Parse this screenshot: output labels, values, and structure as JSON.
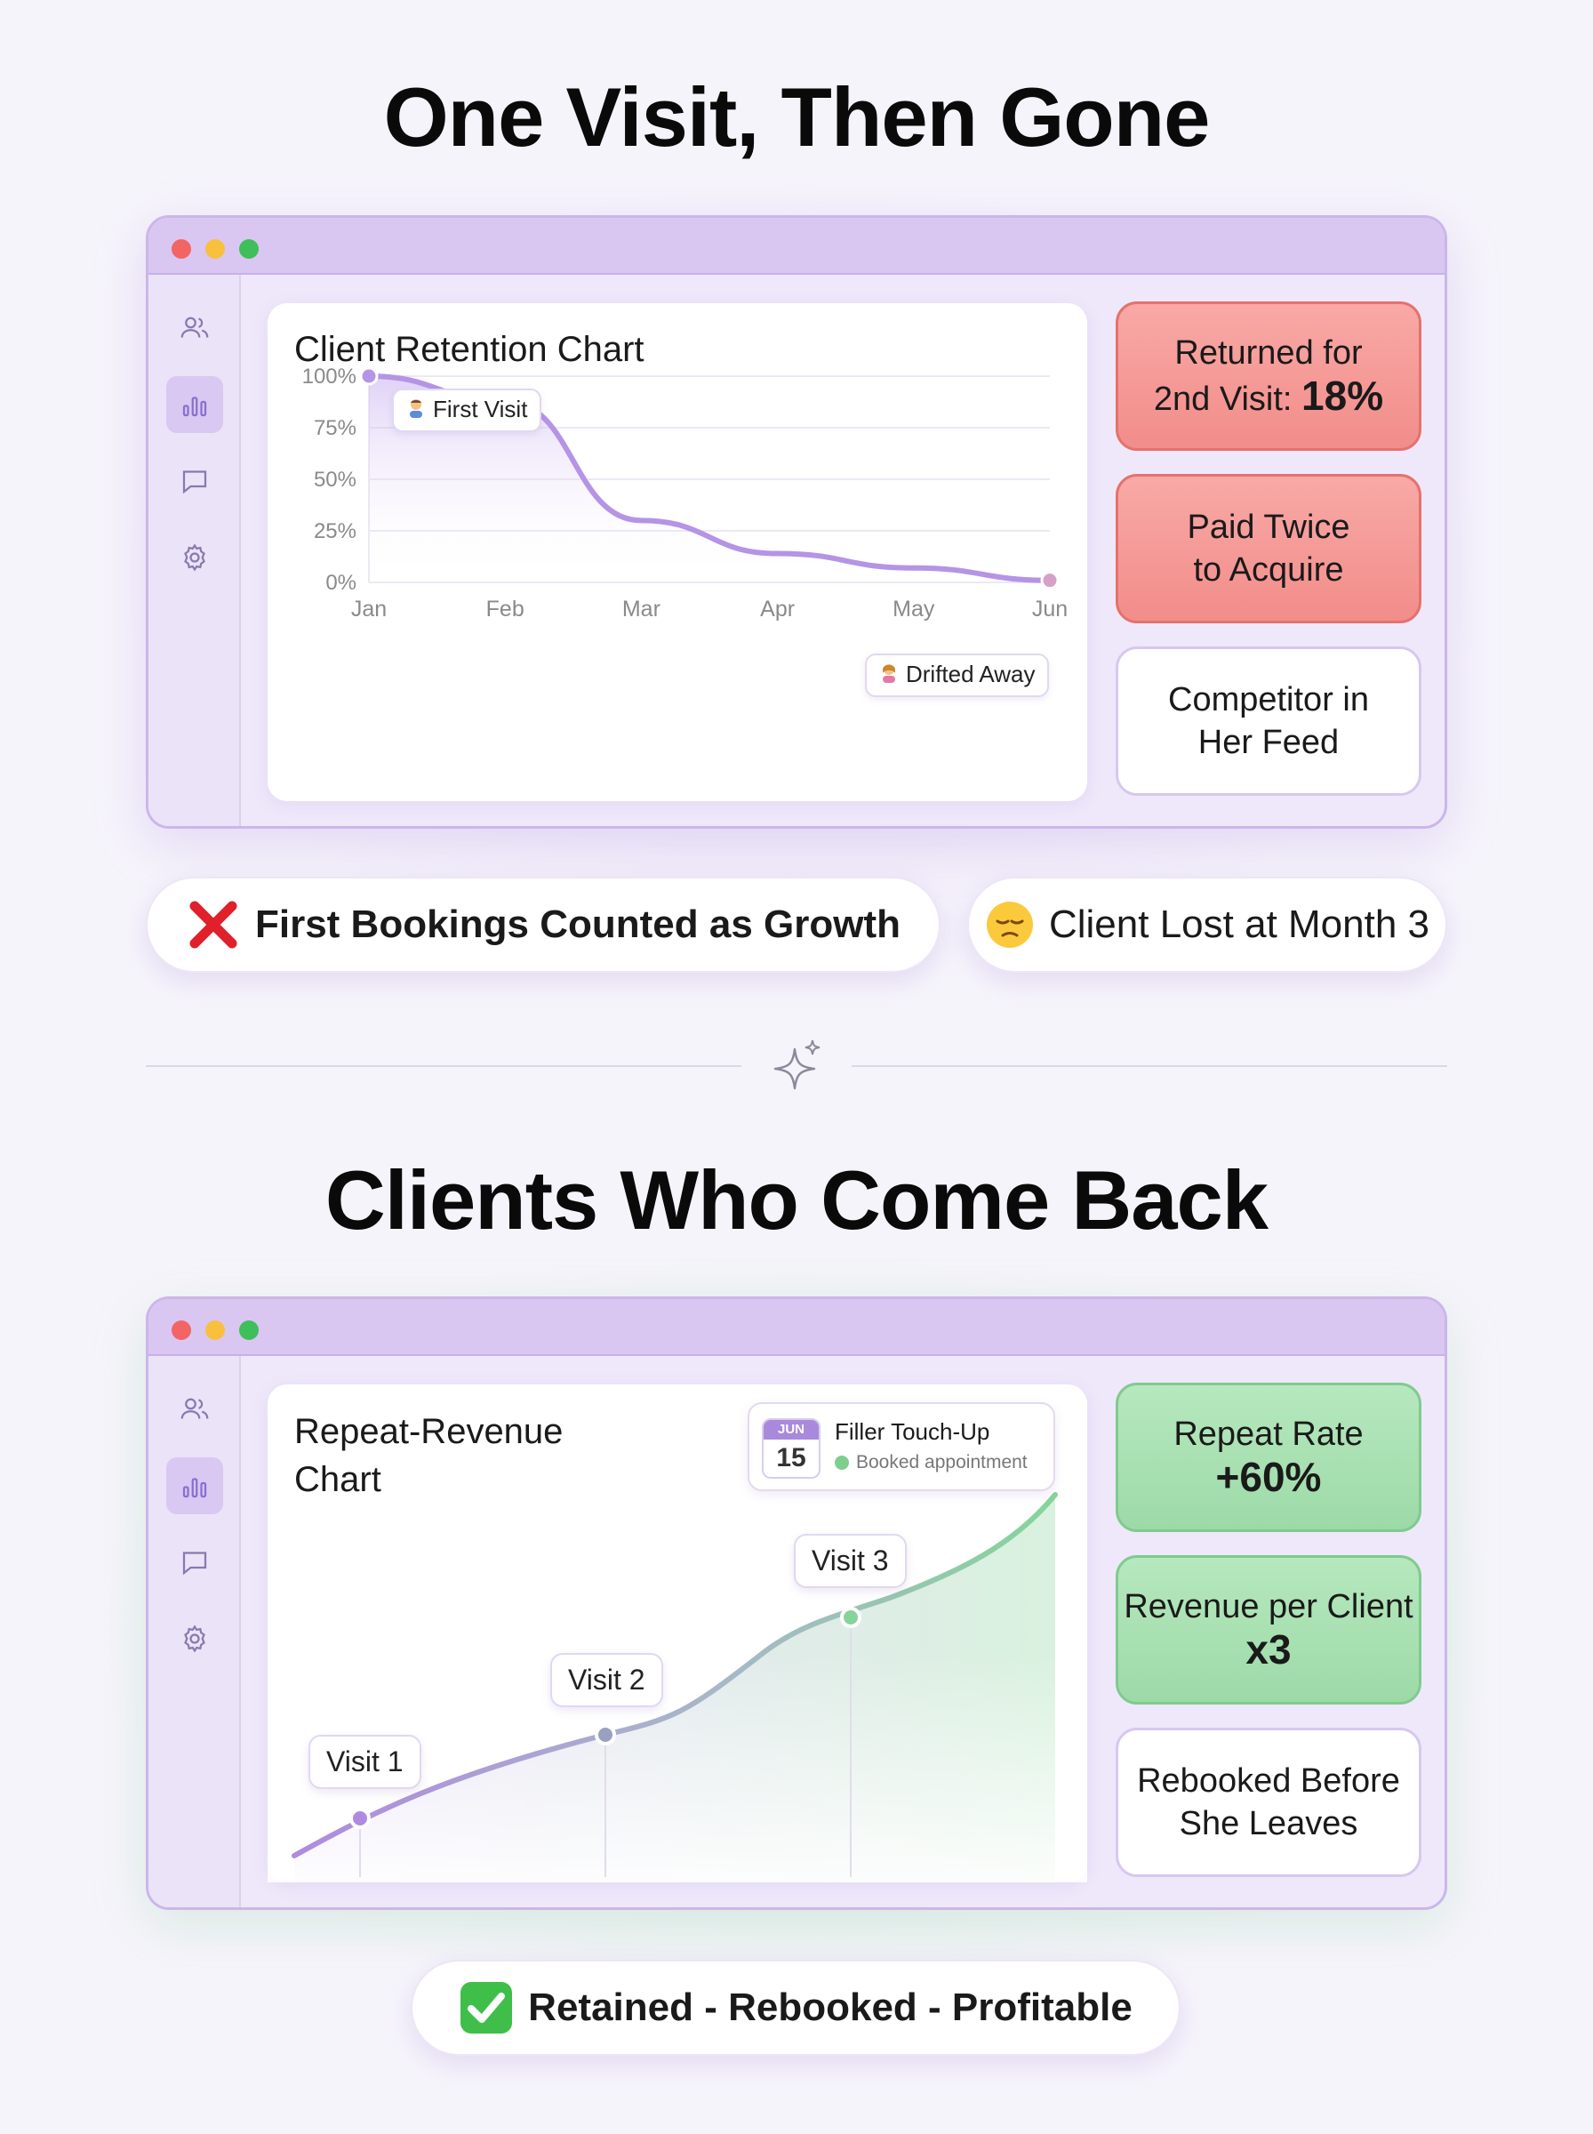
{
  "top_section": {
    "title": "One Visit, Then Gone",
    "chart_card": {
      "title": "Client Retention Chart",
      "tag_first": "First Visit",
      "tag_last": "Drifted Away"
    },
    "stats": [
      {
        "line1": "Returned for",
        "line2": "2nd Visit: ",
        "value": "18%"
      },
      {
        "line1": "Paid Twice",
        "line2": "to Acquire"
      },
      {
        "line1": "Competitor in",
        "line2": "Her Feed"
      }
    ],
    "pills": [
      {
        "label": "First Bookings Counted as Growth",
        "icon": "cross-mark-icon"
      },
      {
        "label": "Client Lost at Month 3",
        "icon": "pensive-face-icon"
      }
    ]
  },
  "bottom_section": {
    "title": "Clients Who Come Back",
    "chart_card": {
      "title": "Repeat-Revenue Chart",
      "appointment": {
        "month": "JUN",
        "day": "15",
        "title": "Filler Touch-Up",
        "status": "Booked appointment"
      },
      "visit_labels": [
        "Visit 1",
        "Visit 2",
        "Visit 3"
      ]
    },
    "stats": [
      {
        "label": "Repeat Rate",
        "value": "+60%"
      },
      {
        "label": "Revenue per Client",
        "value": "x3"
      },
      {
        "line1": "Rebooked Before",
        "line2": "She Leaves"
      }
    ],
    "pill": {
      "label": "Retained - Rebooked - Profitable",
      "icon": "check-mark-button-icon"
    }
  },
  "sidebar_icons": [
    "users-icon",
    "bar-chart-icon",
    "message-icon",
    "settings-icon"
  ],
  "colors": {
    "accent_purple": "#b38fe0",
    "accent_green": "#7fcb8e",
    "alert_red": "#f28d8a"
  },
  "chart_data": [
    {
      "type": "area",
      "title": "Client Retention Chart",
      "x": [
        "Jan",
        "Feb",
        "Mar",
        "Apr",
        "May",
        "Jun"
      ],
      "y_ticks": [
        "100%",
        "75%",
        "50%",
        "25%",
        "0%"
      ],
      "ylim": [
        0,
        100
      ],
      "values": [
        100,
        88,
        30,
        14,
        7,
        1
      ],
      "grid": true
    },
    {
      "type": "area",
      "title": "Repeat-Revenue Chart",
      "points": [
        "Visit 1",
        "Visit 2",
        "Visit 3"
      ],
      "trend": "increasing"
    }
  ]
}
